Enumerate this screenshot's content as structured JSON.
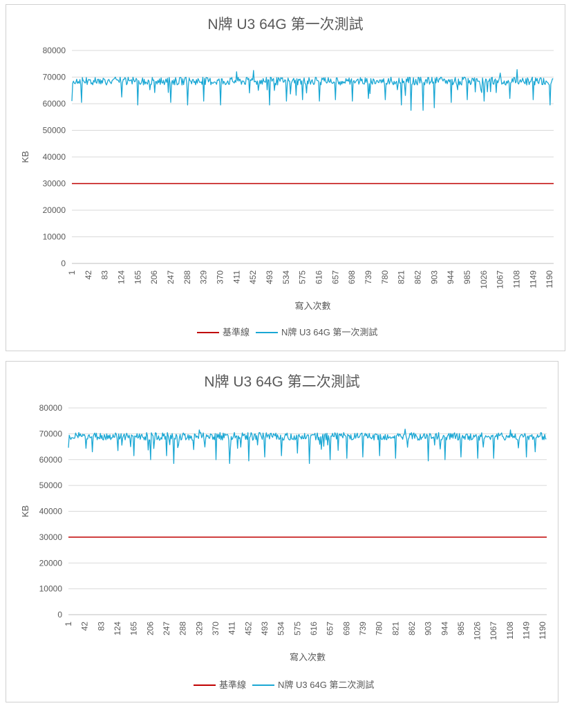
{
  "chart_data": [
    {
      "type": "line",
      "title": "N牌 U3 64G 第一次測試",
      "xlabel": "寫入次數",
      "ylabel": "KB",
      "ylim": [
        0,
        80000
      ],
      "yticks": [
        "0",
        "10000",
        "20000",
        "30000",
        "40000",
        "50000",
        "60000",
        "70000",
        "80000"
      ],
      "xticks": [
        "1",
        "42",
        "83",
        "124",
        "165",
        "206",
        "247",
        "288",
        "329",
        "370",
        "411",
        "452",
        "493",
        "534",
        "575",
        "616",
        "657",
        "698",
        "739",
        "780",
        "821",
        "862",
        "903",
        "944",
        "985",
        "1026",
        "1067",
        "1108",
        "1149",
        "1190"
      ],
      "xrange": [
        1,
        1200
      ],
      "grid": true,
      "legend_position": "bottom",
      "series": [
        {
          "name": "基準線",
          "color": "#c00000",
          "style": "constant",
          "value": 30000
        },
        {
          "name": "N牌 U3 64G 第一次測試",
          "color": "#1aa7d4",
          "style": "noisy",
          "typical_range": [
            67000,
            70000
          ],
          "dips": [
            [
              1,
              61000
            ],
            [
              25,
              60500
            ],
            [
              124,
              62500
            ],
            [
              165,
              59500
            ],
            [
              206,
              59000
            ],
            [
              247,
              60500
            ],
            [
              288,
              59500
            ],
            [
              329,
              61000
            ],
            [
              370,
              59500
            ],
            [
              411,
              60000
            ],
            [
              452,
              61500
            ],
            [
              493,
              59500
            ],
            [
              534,
              61000
            ],
            [
              575,
              61500
            ],
            [
              616,
              61000
            ],
            [
              657,
              61500
            ],
            [
              698,
              61000
            ],
            [
              739,
              62000
            ],
            [
              780,
              61500
            ],
            [
              821,
              59500
            ],
            [
              845,
              57500
            ],
            [
              875,
              57500
            ],
            [
              903,
              58500
            ],
            [
              944,
              60500
            ],
            [
              985,
              61500
            ],
            [
              1026,
              61000
            ],
            [
              1067,
              61500
            ],
            [
              1090,
              62000
            ],
            [
              1149,
              61500
            ],
            [
              1190,
              59500
            ]
          ],
          "peaks": [
            [
              411,
              72000
            ],
            [
              452,
              72500
            ],
            [
              1108,
              72800
            ],
            [
              1067,
              71500
            ]
          ]
        }
      ]
    },
    {
      "type": "line",
      "title": "N牌 U3 64G 第二次測試",
      "xlabel": "寫入次數",
      "ylabel": "KB",
      "ylim": [
        0,
        80000
      ],
      "yticks": [
        "0",
        "10000",
        "20000",
        "30000",
        "40000",
        "50000",
        "60000",
        "70000",
        "80000"
      ],
      "xticks": [
        "1",
        "42",
        "83",
        "124",
        "165",
        "206",
        "247",
        "288",
        "329",
        "370",
        "411",
        "452",
        "493",
        "534",
        "575",
        "616",
        "657",
        "698",
        "739",
        "780",
        "821",
        "862",
        "903",
        "944",
        "985",
        "1026",
        "1067",
        "1108",
        "1149",
        "1190"
      ],
      "xrange": [
        1,
        1200
      ],
      "grid": true,
      "legend_position": "bottom",
      "series": [
        {
          "name": "基準線",
          "color": "#c00000",
          "style": "constant",
          "value": 30000
        },
        {
          "name": "N牌 U3 64G 第二次測試",
          "color": "#1aa7d4",
          "style": "noisy",
          "typical_range": [
            67500,
            70500
          ],
          "dips": [
            [
              1,
              66500
            ],
            [
              60,
              63000
            ],
            [
              124,
              63500
            ],
            [
              165,
              61500
            ],
            [
              206,
              60000
            ],
            [
              247,
              61500
            ],
            [
              265,
              58500
            ],
            [
              329,
              60500
            ],
            [
              370,
              60000
            ],
            [
              405,
              58500
            ],
            [
              452,
              59500
            ],
            [
              493,
              61000
            ],
            [
              534,
              61500
            ],
            [
              575,
              62500
            ],
            [
              605,
              58500
            ],
            [
              657,
              60000
            ],
            [
              698,
              60500
            ],
            [
              739,
              61000
            ],
            [
              780,
              61500
            ],
            [
              821,
              60500
            ],
            [
              845,
              58500
            ],
            [
              903,
              59500
            ],
            [
              944,
              60000
            ],
            [
              985,
              61000
            ],
            [
              1026,
              60500
            ],
            [
              1067,
              60500
            ],
            [
              1108,
              61000
            ],
            [
              1149,
              61000
            ],
            [
              1170,
              63000
            ]
          ],
          "peaks": [
            [
              329,
              71500
            ],
            [
              845,
              71800
            ],
            [
              1108,
              71500
            ]
          ]
        }
      ]
    }
  ]
}
